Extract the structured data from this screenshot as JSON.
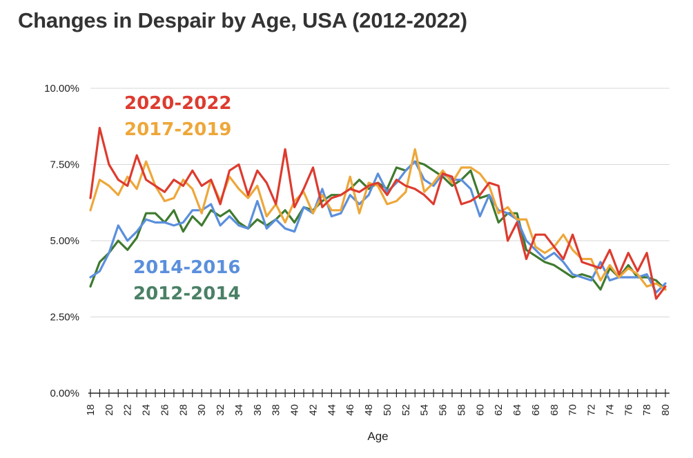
{
  "chart_data": {
    "type": "line",
    "title": "Changes in Despair by Age, USA (2012-2022)",
    "xlabel": "Age",
    "ylabel": "",
    "x": [
      18,
      19,
      20,
      21,
      22,
      23,
      24,
      25,
      26,
      27,
      28,
      29,
      30,
      31,
      32,
      33,
      34,
      35,
      36,
      37,
      38,
      39,
      40,
      41,
      42,
      43,
      44,
      45,
      46,
      47,
      48,
      49,
      50,
      51,
      52,
      53,
      54,
      55,
      56,
      57,
      58,
      59,
      60,
      61,
      62,
      63,
      64,
      65,
      66,
      67,
      68,
      69,
      70,
      71,
      72,
      73,
      74,
      75,
      76,
      77,
      78,
      79,
      80
    ],
    "x_tick_labels": [
      "18",
      "20",
      "22",
      "24",
      "26",
      "28",
      "30",
      "32",
      "34",
      "36",
      "38",
      "40",
      "42",
      "44",
      "46",
      "48",
      "50",
      "52",
      "54",
      "56",
      "58",
      "60",
      "62",
      "64",
      "66",
      "68",
      "70",
      "72",
      "74",
      "76",
      "78",
      "80"
    ],
    "y_tick_labels": [
      "0.00%",
      "2.50%",
      "5.00%",
      "7.50%",
      "10.00%"
    ],
    "y_ticks": [
      0,
      2.5,
      5,
      7.5,
      10
    ],
    "ylim": [
      0,
      10
    ],
    "xlim": [
      18,
      80
    ],
    "grid": true,
    "legend_placement": "inline-left",
    "series": [
      {
        "name": "2012-2014",
        "color": "#3f7a2f",
        "label_color": "#4a8066",
        "values": [
          3.5,
          4.3,
          4.6,
          5.0,
          4.7,
          5.1,
          5.9,
          5.9,
          5.6,
          6.0,
          5.3,
          5.8,
          5.5,
          6.0,
          5.8,
          6.0,
          5.6,
          5.4,
          5.7,
          5.5,
          5.7,
          6.0,
          5.6,
          6.1,
          6.0,
          6.3,
          6.5,
          6.5,
          6.7,
          7.0,
          6.7,
          6.9,
          6.7,
          7.4,
          7.3,
          7.6,
          7.5,
          7.3,
          7.1,
          6.8,
          7.0,
          7.3,
          6.4,
          6.5,
          5.6,
          5.9,
          5.9,
          4.7,
          4.5,
          4.3,
          4.2,
          4.0,
          3.8,
          3.9,
          3.8,
          3.4,
          4.1,
          3.8,
          4.2,
          3.8,
          3.8,
          3.7,
          3.4
        ]
      },
      {
        "name": "2014-2016",
        "color": "#5b8fdc",
        "label_color": "#5b8fdc",
        "values": [
          3.8,
          4.0,
          4.6,
          5.5,
          5.0,
          5.3,
          5.7,
          5.6,
          5.6,
          5.5,
          5.6,
          6.0,
          6.0,
          6.2,
          5.5,
          5.8,
          5.5,
          5.4,
          6.3,
          5.4,
          5.7,
          5.4,
          5.3,
          6.1,
          5.9,
          6.7,
          5.8,
          5.9,
          6.5,
          6.2,
          6.5,
          7.2,
          6.6,
          6.9,
          7.3,
          7.6,
          7.0,
          6.8,
          7.2,
          7.0,
          7.0,
          6.7,
          5.8,
          6.5,
          6.0,
          5.9,
          5.7,
          5.0,
          4.7,
          4.4,
          4.6,
          4.3,
          3.9,
          3.8,
          3.7,
          4.3,
          3.7,
          3.8,
          3.8,
          3.8,
          3.9,
          3.3,
          3.6
        ]
      },
      {
        "name": "2017-2019",
        "color": "#eda73a",
        "label_color": "#eda73a",
        "values": [
          6.0,
          7.0,
          6.8,
          6.5,
          7.1,
          6.7,
          7.6,
          6.8,
          6.3,
          6.4,
          7.0,
          6.7,
          5.9,
          7.0,
          6.3,
          7.1,
          6.7,
          6.4,
          6.8,
          5.8,
          6.2,
          5.6,
          6.3,
          6.6,
          5.9,
          6.5,
          6.0,
          6.0,
          7.1,
          5.9,
          6.9,
          6.8,
          6.2,
          6.3,
          6.6,
          8.0,
          6.6,
          6.9,
          7.3,
          6.9,
          7.4,
          7.4,
          7.2,
          6.8,
          5.9,
          6.1,
          5.7,
          5.7,
          4.8,
          4.6,
          4.8,
          5.2,
          4.7,
          4.4,
          4.4,
          3.7,
          4.2,
          3.8,
          4.1,
          3.9,
          3.5,
          3.6,
          3.4
        ]
      },
      {
        "name": "2020-2022",
        "color": "#dd3b2f",
        "label_color": "#dd3b2f",
        "values": [
          6.4,
          8.7,
          7.5,
          7.0,
          6.8,
          7.8,
          7.0,
          6.8,
          6.6,
          7.0,
          6.8,
          7.3,
          6.8,
          7.0,
          6.2,
          7.3,
          7.5,
          6.5,
          7.3,
          6.9,
          6.2,
          8.0,
          6.1,
          6.7,
          7.4,
          6.1,
          6.4,
          6.5,
          6.7,
          6.6,
          6.8,
          6.9,
          6.5,
          7.0,
          6.8,
          6.7,
          6.5,
          6.2,
          7.2,
          7.1,
          6.2,
          6.3,
          6.5,
          6.9,
          6.8,
          5.0,
          5.6,
          4.4,
          5.2,
          5.2,
          4.8,
          4.4,
          5.2,
          4.3,
          4.2,
          4.1,
          4.7,
          3.9,
          4.6,
          4.0,
          4.6,
          3.1,
          3.5
        ]
      }
    ]
  },
  "legend_labels": [
    {
      "text": "2020-2022",
      "color": "#dd3b2f"
    },
    {
      "text": "2017-2019",
      "color": "#eda73a"
    },
    {
      "text": "2014-2016",
      "color": "#5b8fdc"
    },
    {
      "text": "2012-2014",
      "color": "#4a8066"
    }
  ]
}
